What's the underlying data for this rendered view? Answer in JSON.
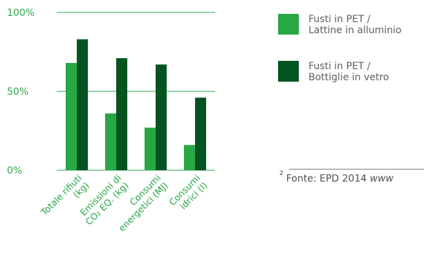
{
  "chart_data": {
    "type": "bar",
    "categories": [
      [
        "Totale rifiuti",
        "(kg)"
      ],
      [
        "Emissioni di",
        "CO₂ EQ. (kg)"
      ],
      [
        "Consumi",
        "energetici (MJ)"
      ],
      [
        "Consumi",
        "idrici (l)"
      ]
    ],
    "series": [
      {
        "name": "Fusti in PET / Lattine in alluminio",
        "values": [
          68,
          36,
          27,
          16
        ]
      },
      {
        "name": "Fusti in PET / Bottiglie in vetro",
        "values": [
          83,
          71,
          67,
          46
        ]
      }
    ],
    "y_ticks": [
      {
        "value": 100,
        "label": "100%"
      },
      {
        "value": 50,
        "label": "50%"
      },
      {
        "value": 0,
        "label": "0%"
      }
    ],
    "ylim": [
      0,
      100
    ],
    "grid": true,
    "legend_position": "right"
  },
  "colors": {
    "series_1": "#28a745",
    "series_2": "#035421",
    "text_green": "#28a745",
    "gridline": "#28a745",
    "legend_text": "#5d5f61"
  },
  "legend": [
    {
      "swatch": "series_1",
      "lines": [
        "Fusti in PET /",
        "Lattine in alluminio"
      ]
    },
    {
      "swatch": "series_2",
      "lines": [
        "Fusti in PET /",
        "Bottiglie in vetro"
      ]
    }
  ],
  "footnote": {
    "marker": "2",
    "text": "Fonte: EPD 2014 ",
    "emphasis": "www"
  }
}
